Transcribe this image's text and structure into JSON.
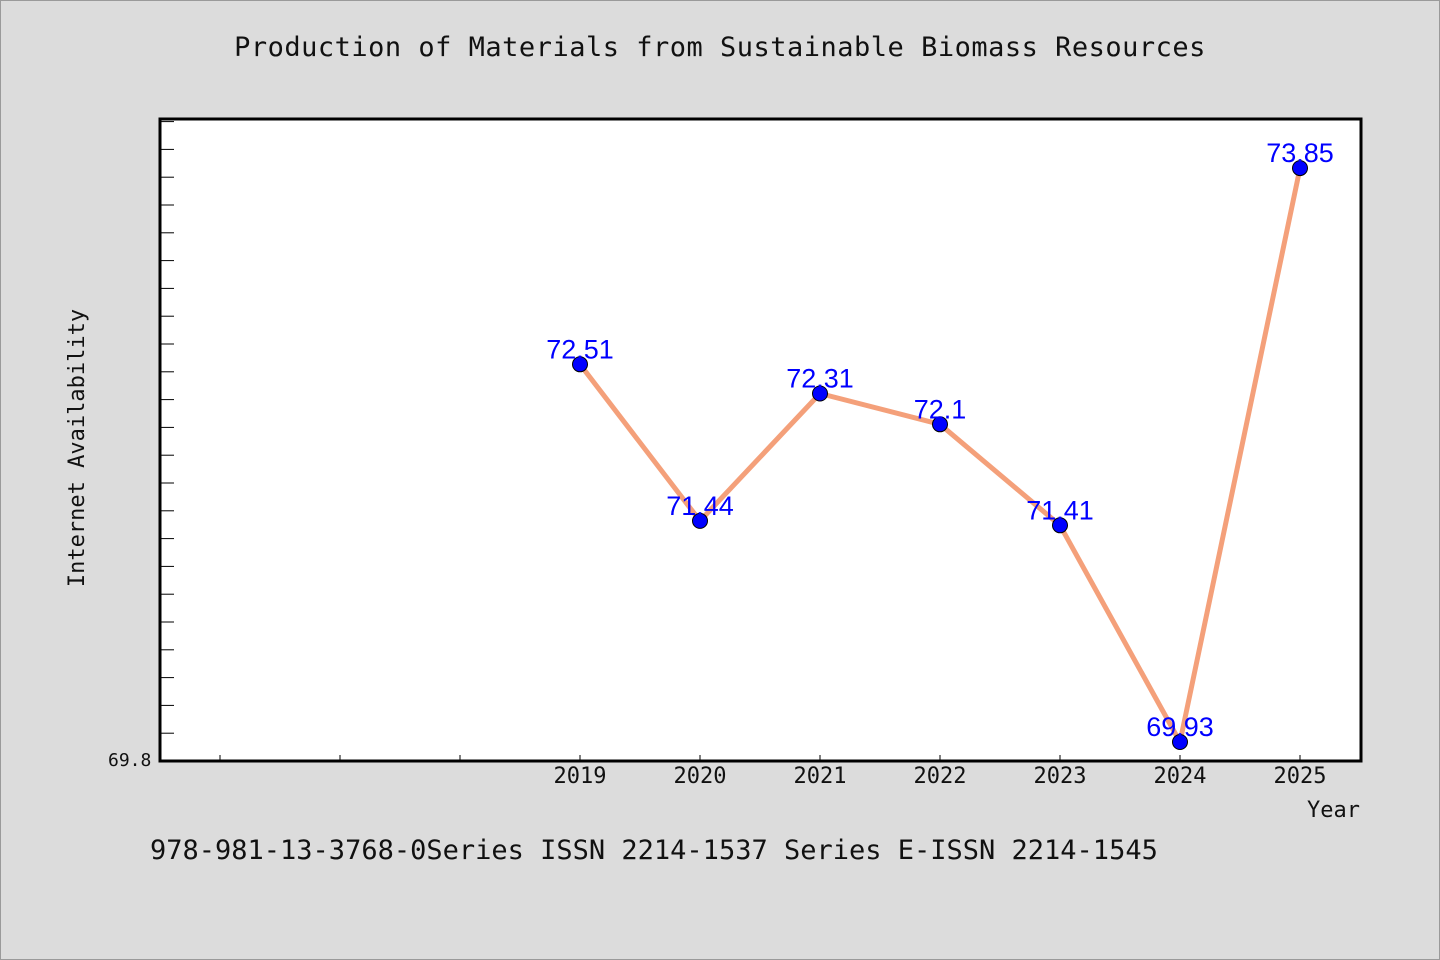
{
  "chart_data": {
    "type": "line",
    "title": "Production of Materials from Sustainable Biomass Resources",
    "xlabel": "Year",
    "ylabel": "Internet Availability",
    "x": [
      "2019",
      "2020",
      "2021",
      "2022",
      "2023",
      "2024",
      "2025"
    ],
    "series": [
      {
        "values": [
          72.51,
          71.44,
          72.31,
          72.1,
          71.41,
          69.93,
          73.85
        ],
        "data_labels": [
          "72.51",
          "71.44",
          "72.31",
          "72.1",
          "71.41",
          "69.93",
          "73.85"
        ],
        "line_color": "#f4a07a",
        "marker_color": "#0000ff"
      }
    ],
    "ylim": [
      69.8,
      74.4
    ],
    "y_tick_label": "69.8",
    "grid": false,
    "legend": "none"
  },
  "footer_text": "978-981-13-3768-0Series ISSN 2214-1537 Series E-ISSN 2214-1545",
  "colors": {
    "background": "#dcdcdc",
    "plot_background": "#ffffff",
    "line": "#f4a07a",
    "marker": "#0000ff",
    "data_label": "#0000ff"
  }
}
